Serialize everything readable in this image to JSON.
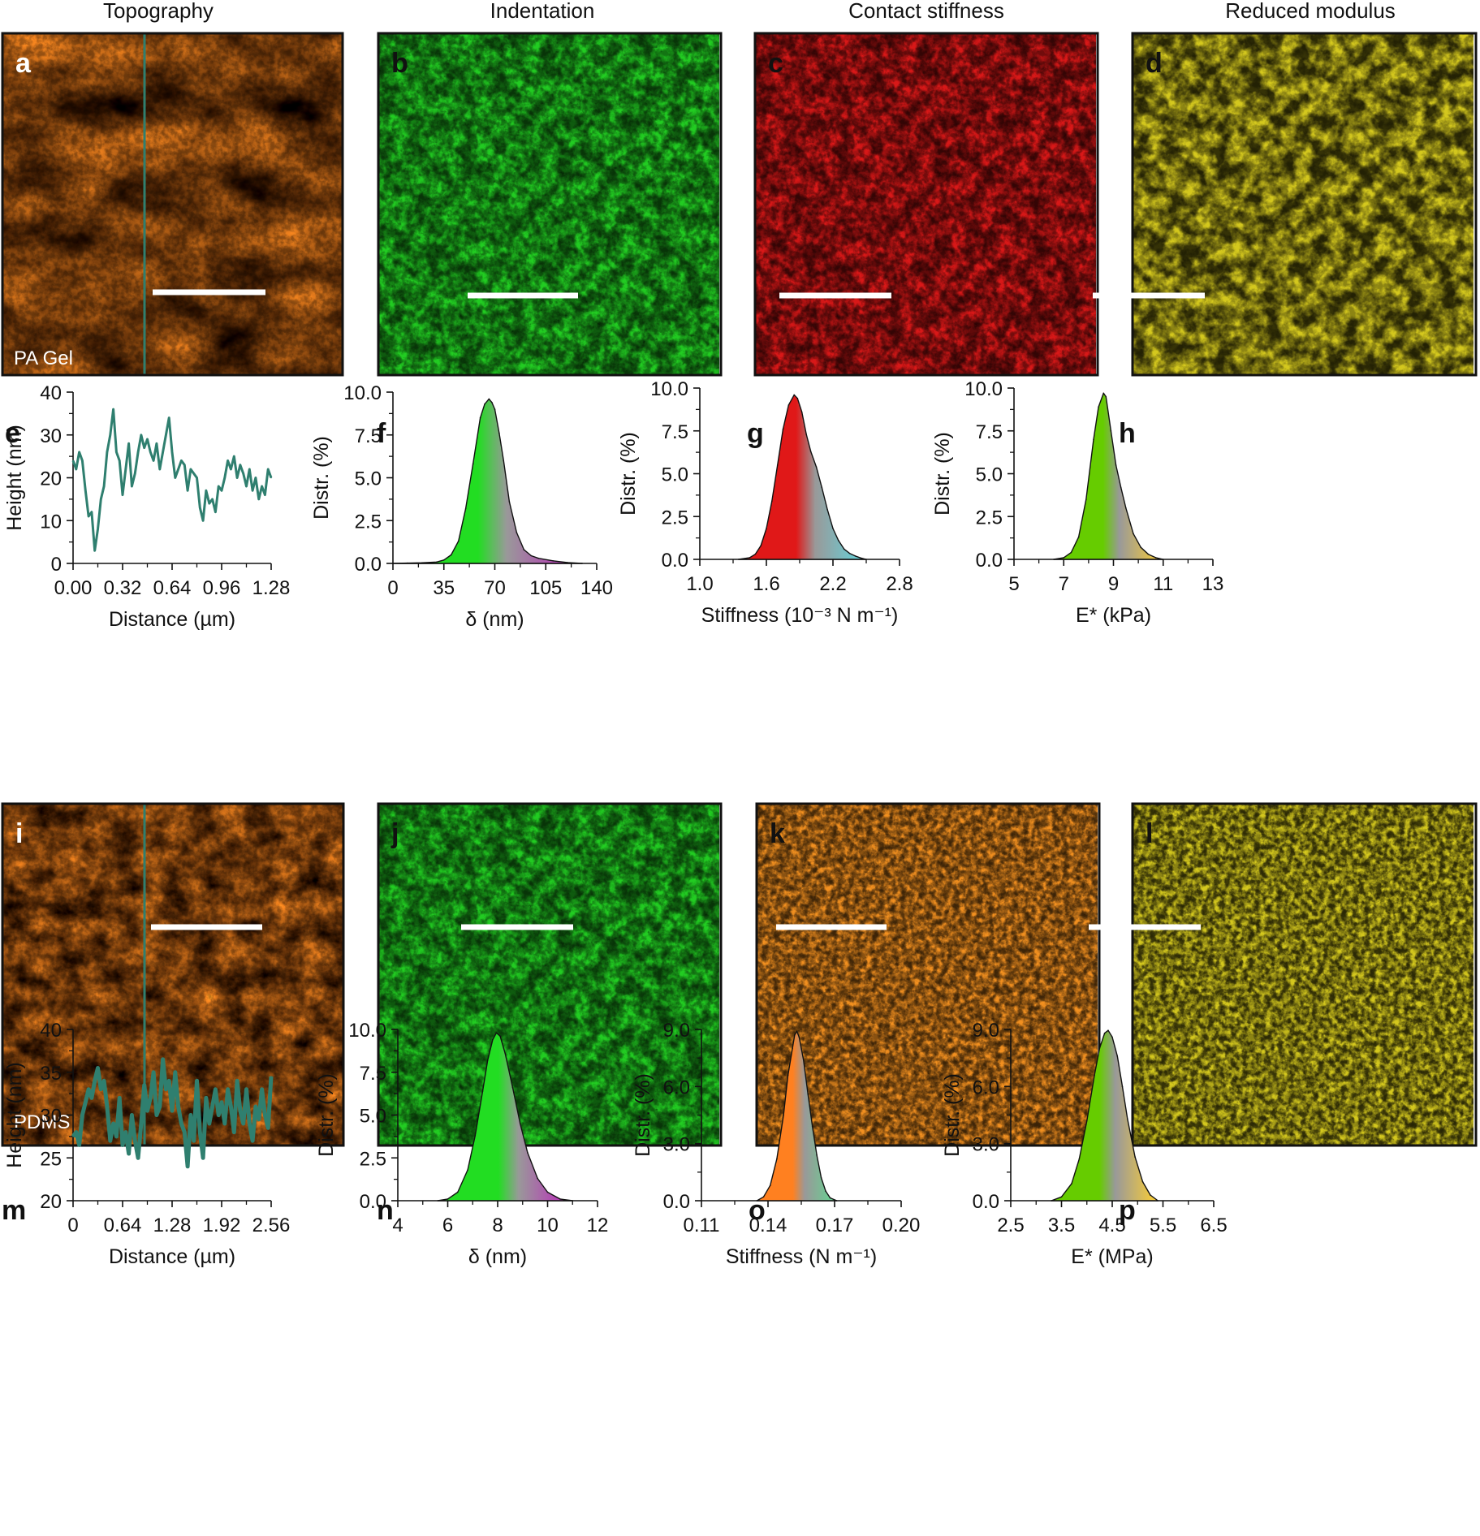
{
  "headers": [
    "Topography",
    "Indentation",
    "Contact stiffness",
    "Reduced modulus"
  ],
  "colors": {
    "line": "#2f7f6f",
    "topo_dark": "#3a1c00",
    "topo_mid": "#a8620a",
    "topo_light": "#ffd070",
    "indent_green": "#22cc22",
    "indent_magenta": "#d020d0",
    "indent_dark": "#0d4d0d",
    "stiff_red": "#d81818",
    "stiff_cyan": "#20d8e0",
    "stiff_orange": "#f29020",
    "stiff_green": "#3ad070",
    "mod_olive": "#1e5a0a",
    "mod_yellow": "#d4c81e",
    "mod_orange": "#e8a040"
  },
  "maps": [
    {
      "panel": "a",
      "type": "topography",
      "sample_label": "PA Gel",
      "profile_line": true
    },
    {
      "panel": "b",
      "type": "indentation"
    },
    {
      "panel": "c",
      "type": "stiffness_red_cyan"
    },
    {
      "panel": "d",
      "type": "modulus"
    },
    {
      "panel": "i",
      "type": "topography",
      "sample_label": "PDMS",
      "profile_line": true
    },
    {
      "panel": "j",
      "type": "indentation"
    },
    {
      "panel": "k",
      "type": "stiffness_multi"
    },
    {
      "panel": "l",
      "type": "modulus"
    }
  ],
  "chart_data": [
    {
      "panel": "e",
      "type": "line",
      "xlabel": "Distance (µm)",
      "ylabel": "Height (nm)",
      "xlim": [
        0,
        1.28
      ],
      "ylim": [
        0,
        40
      ],
      "xticks": [
        "0.00",
        "0.32",
        "0.64",
        "0.96",
        "1.28"
      ],
      "yticks": [
        "0",
        "10",
        "20",
        "30",
        "40"
      ],
      "x": [
        0.0,
        0.02,
        0.04,
        0.06,
        0.08,
        0.1,
        0.12,
        0.14,
        0.16,
        0.18,
        0.2,
        0.22,
        0.24,
        0.26,
        0.28,
        0.3,
        0.32,
        0.34,
        0.36,
        0.38,
        0.4,
        0.42,
        0.44,
        0.46,
        0.48,
        0.5,
        0.52,
        0.54,
        0.56,
        0.58,
        0.6,
        0.62,
        0.64,
        0.66,
        0.68,
        0.7,
        0.72,
        0.74,
        0.76,
        0.78,
        0.8,
        0.82,
        0.84,
        0.86,
        0.88,
        0.9,
        0.92,
        0.94,
        0.96,
        0.98,
        1.0,
        1.02,
        1.04,
        1.06,
        1.08,
        1.1,
        1.12,
        1.14,
        1.16,
        1.18,
        1.2,
        1.22,
        1.24,
        1.26,
        1.28
      ],
      "y": [
        24,
        22,
        26,
        24,
        17,
        11,
        12,
        3,
        8,
        15,
        18,
        26,
        30,
        36,
        26,
        24,
        16,
        22,
        28,
        18,
        21,
        26,
        30,
        27,
        29,
        26,
        24,
        28,
        22,
        26,
        30,
        34,
        26,
        20,
        22,
        24,
        23,
        17,
        22,
        21,
        20,
        13,
        10,
        17,
        14,
        15,
        12,
        18,
        17,
        20,
        24,
        22,
        25,
        20,
        23,
        21,
        18,
        22,
        17,
        20,
        15,
        18,
        16,
        22,
        20
      ]
    },
    {
      "panel": "f",
      "type": "area",
      "xlabel": "δ (nm)",
      "ylabel": "Distr. (%)",
      "xlim": [
        0,
        140
      ],
      "ylim": [
        0,
        10
      ],
      "xticks": [
        "0",
        "35",
        "70",
        "105",
        "140"
      ],
      "yticks": [
        "0.0",
        "2.5",
        "5.0",
        "7.5",
        "10.0"
      ],
      "x": [
        0,
        10,
        20,
        30,
        35,
        40,
        45,
        50,
        55,
        60,
        63,
        66,
        68,
        70,
        73,
        76,
        80,
        85,
        90,
        95,
        100,
        110,
        120,
        130
      ],
      "y": [
        0,
        0.02,
        0.04,
        0.08,
        0.2,
        0.5,
        1.3,
        3.2,
        5.8,
        8.5,
        9.3,
        9.6,
        9.4,
        9.0,
        7.6,
        6.0,
        3.6,
        1.8,
        0.8,
        0.45,
        0.3,
        0.15,
        0.05,
        0
      ],
      "gradient": [
        "#22dd22",
        "#c020c0"
      ]
    },
    {
      "panel": "g",
      "type": "area",
      "xlabel": "Stiffness (10⁻³ N m⁻¹)",
      "ylabel": "Distr. (%)",
      "xlim": [
        1.0,
        2.8
      ],
      "ylim": [
        0,
        10
      ],
      "xticks": [
        "1.0",
        "1.6",
        "2.2",
        "2.8"
      ],
      "yticks": [
        "0.0",
        "2.5",
        "5.0",
        "7.5",
        "10.0"
      ],
      "x": [
        1.35,
        1.45,
        1.5,
        1.55,
        1.6,
        1.65,
        1.7,
        1.75,
        1.8,
        1.85,
        1.88,
        1.92,
        1.96,
        2.0,
        2.05,
        2.1,
        2.15,
        2.2,
        2.25,
        2.3,
        2.35,
        2.4,
        2.45,
        2.5
      ],
      "y": [
        0,
        0.1,
        0.3,
        0.8,
        1.8,
        3.4,
        5.5,
        7.6,
        9.0,
        9.6,
        9.4,
        8.6,
        7.3,
        6.3,
        5.4,
        4.2,
        2.9,
        1.8,
        1.1,
        0.6,
        0.35,
        0.2,
        0.08,
        0
      ],
      "gradient": [
        "#e01818",
        "#60d8e0"
      ]
    },
    {
      "panel": "h",
      "type": "area",
      "xlabel": "E* (kPa)",
      "ylabel": "Distr. (%)",
      "xlim": [
        5,
        13
      ],
      "ylim": [
        0,
        10
      ],
      "xticks": [
        "5",
        "7",
        "9",
        "11",
        "13"
      ],
      "yticks": [
        "0.0",
        "2.5",
        "5.0",
        "7.5",
        "10.0"
      ],
      "x": [
        6.6,
        7.0,
        7.3,
        7.6,
        7.9,
        8.2,
        8.4,
        8.6,
        8.7,
        8.9,
        9.1,
        9.3,
        9.5,
        9.8,
        10.1,
        10.4,
        10.7,
        11.0
      ],
      "y": [
        0,
        0.1,
        0.4,
        1.3,
        3.5,
        7.0,
        8.9,
        9.7,
        9.5,
        7.5,
        5.5,
        4.2,
        3.0,
        1.5,
        0.7,
        0.3,
        0.1,
        0
      ],
      "gradient": [
        "#66cc00",
        "#ffd030"
      ]
    },
    {
      "panel": "m",
      "type": "line",
      "xlabel": "Distance (µm)",
      "ylabel": "Height (nm)",
      "xlim": [
        0,
        2.56
      ],
      "ylim": [
        20,
        40
      ],
      "xticks": [
        "0",
        "0.64",
        "1.28",
        "1.92",
        "2.56"
      ],
      "yticks": [
        "20",
        "25",
        "30",
        "35",
        "40"
      ],
      "x": [
        0.0,
        0.04,
        0.08,
        0.12,
        0.16,
        0.2,
        0.24,
        0.28,
        0.32,
        0.36,
        0.4,
        0.44,
        0.48,
        0.52,
        0.56,
        0.6,
        0.64,
        0.68,
        0.72,
        0.76,
        0.8,
        0.84,
        0.88,
        0.92,
        0.96,
        1.0,
        1.04,
        1.08,
        1.12,
        1.16,
        1.2,
        1.24,
        1.28,
        1.32,
        1.36,
        1.4,
        1.44,
        1.48,
        1.52,
        1.56,
        1.6,
        1.64,
        1.68,
        1.72,
        1.76,
        1.8,
        1.84,
        1.88,
        1.92,
        1.96,
        2.0,
        2.04,
        2.08,
        2.12,
        2.16,
        2.2,
        2.24,
        2.28,
        2.32,
        2.36,
        2.4,
        2.44,
        2.48,
        2.52,
        2.56
      ],
      "y": [
        27.5,
        28,
        26.5,
        30,
        31.5,
        33,
        32,
        34,
        35.5,
        33,
        34,
        31,
        27,
        29,
        27.5,
        32,
        26.5,
        28,
        25.5,
        30,
        27,
        25,
        29,
        33.5,
        30.5,
        32,
        35,
        30,
        31,
        36.5,
        33,
        34,
        30.5,
        35,
        31,
        29,
        28,
        24,
        30,
        27,
        34,
        28,
        25,
        32,
        29,
        31,
        33,
        30,
        31.5,
        29,
        33,
        31,
        28,
        34,
        30.5,
        29,
        33,
        29,
        27,
        31,
        29.5,
        33,
        30,
        28.5,
        34.5
      ],
      "line_width": 5
    },
    {
      "panel": "n",
      "type": "area",
      "xlabel": "δ (nm)",
      "ylabel": "Distr. (%)",
      "xlim": [
        4,
        12
      ],
      "ylim": [
        0,
        10
      ],
      "xticks": [
        "4",
        "6",
        "8",
        "10",
        "12"
      ],
      "yticks": [
        "0.0",
        "2.5",
        "5.0",
        "7.5",
        "10.0"
      ],
      "x": [
        5.6,
        6.0,
        6.4,
        6.8,
        7.1,
        7.4,
        7.6,
        7.8,
        7.95,
        8.1,
        8.3,
        8.6,
        8.9,
        9.2,
        9.6,
        10.0,
        10.5,
        11.0
      ],
      "y": [
        0,
        0.1,
        0.5,
        1.8,
        3.8,
        6.4,
        8.2,
        9.4,
        9.8,
        9.6,
        8.6,
        6.6,
        4.5,
        2.8,
        1.3,
        0.5,
        0.1,
        0
      ],
      "gradient": [
        "#22dd22",
        "#c020c0"
      ]
    },
    {
      "panel": "o",
      "type": "area",
      "xlabel": "Stiffness (N m⁻¹)",
      "ylabel": "Distr. (%)",
      "xlim": [
        0.11,
        0.2
      ],
      "ylim": [
        0,
        9.0
      ],
      "xticks": [
        "0.11",
        "0.14",
        "0.17",
        "0.20"
      ],
      "yticks": [
        "0.0",
        "3.0",
        "6.0",
        "9.0"
      ],
      "x": [
        0.135,
        0.138,
        0.141,
        0.144,
        0.147,
        0.149,
        0.151,
        0.152,
        0.153,
        0.154,
        0.156,
        0.158,
        0.16,
        0.162,
        0.164,
        0.166,
        0.168,
        0.171
      ],
      "y": [
        0,
        0.2,
        0.8,
        2.2,
        4.5,
        6.6,
        8.0,
        8.7,
        8.9,
        8.6,
        7.4,
        5.6,
        3.9,
        2.4,
        1.2,
        0.5,
        0.15,
        0
      ],
      "gradient": [
        "#ff8020",
        "#60d890"
      ]
    },
    {
      "panel": "p",
      "type": "area",
      "xlabel": "E* (MPa)",
      "ylabel": "Distr. (%)",
      "xlim": [
        2.5,
        6.5
      ],
      "ylim": [
        0,
        9.0
      ],
      "xticks": [
        "2.5",
        "3.5",
        "4.5",
        "5.5",
        "6.5"
      ],
      "yticks": [
        "0.0",
        "3.0",
        "6.0",
        "9.0"
      ],
      "x": [
        3.3,
        3.5,
        3.7,
        3.85,
        4.0,
        4.15,
        4.25,
        4.35,
        4.42,
        4.5,
        4.6,
        4.7,
        4.8,
        4.95,
        5.1,
        5.25,
        5.4
      ],
      "y": [
        0,
        0.2,
        0.9,
        2.2,
        4.2,
        6.6,
        8.0,
        8.8,
        8.95,
        8.6,
        7.6,
        6.0,
        4.3,
        2.3,
        1.0,
        0.3,
        0
      ],
      "gradient": [
        "#66cc00",
        "#ffd030"
      ]
    }
  ]
}
